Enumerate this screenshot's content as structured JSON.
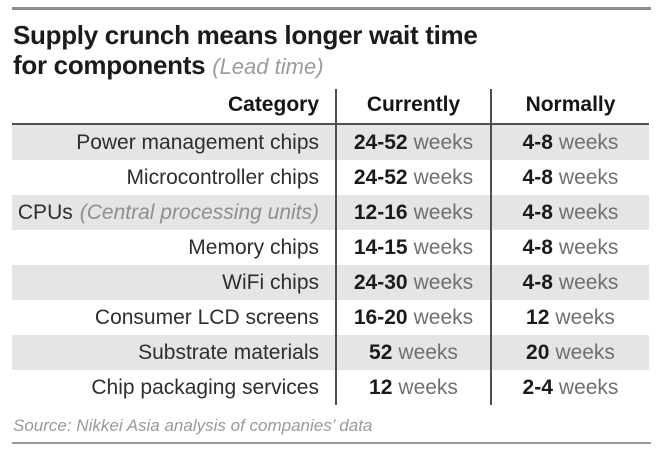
{
  "title": {
    "line1": "Supply crunch means longer wait time",
    "line2": "for components",
    "subtitle": "(Lead time)"
  },
  "table": {
    "headers": [
      "Category",
      "Currently",
      "Normally"
    ],
    "rows": [
      {
        "category": "Power management chips",
        "category_note": "",
        "currently_value": "24-52",
        "currently_unit": "weeks",
        "normally_value": "4-8",
        "normally_unit": "weeks"
      },
      {
        "category": "Microcontroller chips",
        "category_note": "",
        "currently_value": "24-52",
        "currently_unit": "weeks",
        "normally_value": "4-8",
        "normally_unit": "weeks"
      },
      {
        "category": "CPUs",
        "category_note": "(Central processing units)",
        "currently_value": "12-16",
        "currently_unit": "weeks",
        "normally_value": "4-8",
        "normally_unit": "weeks"
      },
      {
        "category": "Memory chips",
        "category_note": "",
        "currently_value": "14-15",
        "currently_unit": "weeks",
        "normally_value": "4-8",
        "normally_unit": "weeks"
      },
      {
        "category": "WiFi chips",
        "category_note": "",
        "currently_value": "24-30",
        "currently_unit": "weeks",
        "normally_value": "4-8",
        "normally_unit": "weeks"
      },
      {
        "category": "Consumer LCD screens",
        "category_note": "",
        "currently_value": "16-20",
        "currently_unit": "weeks",
        "normally_value": "12",
        "normally_unit": "weeks"
      },
      {
        "category": "Substrate materials",
        "category_note": "",
        "currently_value": "52",
        "currently_unit": "weeks",
        "normally_value": "20",
        "normally_unit": "weeks"
      },
      {
        "category": "Chip packaging services",
        "category_note": "",
        "currently_value": "12",
        "currently_unit": "weeks",
        "normally_value": "2-4",
        "normally_unit": "weeks"
      }
    ]
  },
  "source": "Source: Nikkei Asia analysis of companies’ data",
  "colors": {
    "row_stripe": "#e5e5e5",
    "rule_dark": "#4f4f4f",
    "rule_top": "#8c8c8c",
    "rule_bottom": "#9a9a9a",
    "text_dark": "#1b1b1b",
    "text_gray": "#6f6f6f",
    "text_italic_gray": "#9a9a9a"
  },
  "chart_data": {
    "type": "table",
    "title": "Supply crunch means longer wait time for components",
    "subtitle": "(Lead time)",
    "columns": [
      "Category",
      "Currently",
      "Normally"
    ],
    "rows": [
      [
        "Power management chips",
        "24-52 weeks",
        "4-8 weeks"
      ],
      [
        "Microcontroller chips",
        "24-52 weeks",
        "4-8 weeks"
      ],
      [
        "CPUs (Central processing units)",
        "12-16 weeks",
        "4-8 weeks"
      ],
      [
        "Memory chips",
        "14-15 weeks",
        "4-8 weeks"
      ],
      [
        "WiFi chips",
        "24-30 weeks",
        "4-8 weeks"
      ],
      [
        "Consumer LCD screens",
        "16-20 weeks",
        "12 weeks"
      ],
      [
        "Substrate materials",
        "52 weeks",
        "20 weeks"
      ],
      [
        "Chip packaging services",
        "12 weeks",
        "2-4 weeks"
      ]
    ],
    "source": "Source: Nikkei Asia analysis of companies' data",
    "layout": {
      "stripe_start": "first_data_row",
      "column_dividers": true,
      "unit": "weeks"
    }
  }
}
